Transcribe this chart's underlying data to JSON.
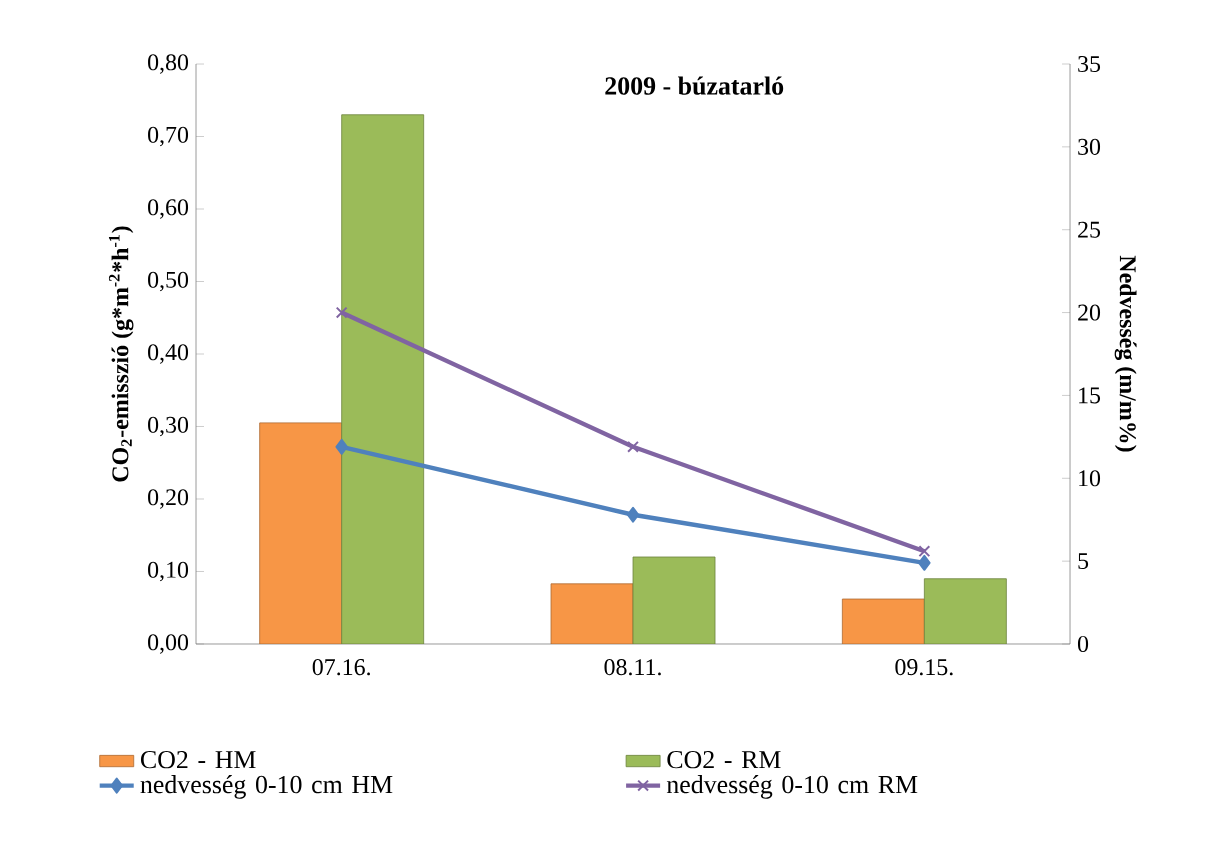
{
  "chart_data": {
    "type": "bar",
    "title": "2009 - búzatarló",
    "categories": [
      "07.16.",
      "08.11.",
      "09.15."
    ],
    "ylabel": "CO$_{2}$-emisszió (g*m$^{-2}$*h$^{-1}$)",
    "y2label": "Nedvesség (m/m%)",
    "series": [
      {
        "name": "CO2 - HM",
        "color": "#f79646",
        "values": [
          0.305,
          0.083,
          0.062
        ]
      },
      {
        "name": "CO2 - RM",
        "color": "#9bbb59",
        "values": [
          0.73,
          0.12,
          0.09
        ]
      },
      {
        "name": "nedvesség 0-10 cm HM",
        "type": "line",
        "axis": "y2",
        "marker": "diamond",
        "color": "#4f81bd",
        "values": [
          11.9,
          7.8,
          4.9
        ]
      },
      {
        "name": "nedvesség 0-10 cm RM",
        "type": "line",
        "axis": "y2",
        "marker": "cross",
        "color": "#8064a2",
        "values": [
          20,
          11.9,
          5.6
        ]
      }
    ],
    "ylim": [
      0,
      0.8
    ],
    "yticks": [
      {
        "value": 0,
        "label": "0,00"
      },
      {
        "value": 0.1,
        "label": "0,10"
      },
      {
        "value": 0.2,
        "label": "0,20"
      },
      {
        "value": 0.3,
        "label": "0,30"
      },
      {
        "value": 0.4,
        "label": "0,40"
      },
      {
        "value": 0.5,
        "label": "0,50"
      },
      {
        "value": 0.6,
        "label": "0,60"
      },
      {
        "value": 0.7,
        "label": "0,70"
      },
      {
        "value": 0.8,
        "label": "0,80"
      }
    ],
    "y2lim": [
      0,
      35
    ],
    "y2ticks": [
      0,
      5,
      10,
      15,
      20,
      25,
      30,
      35
    ],
    "legend": "bottom",
    "grid": false
  }
}
